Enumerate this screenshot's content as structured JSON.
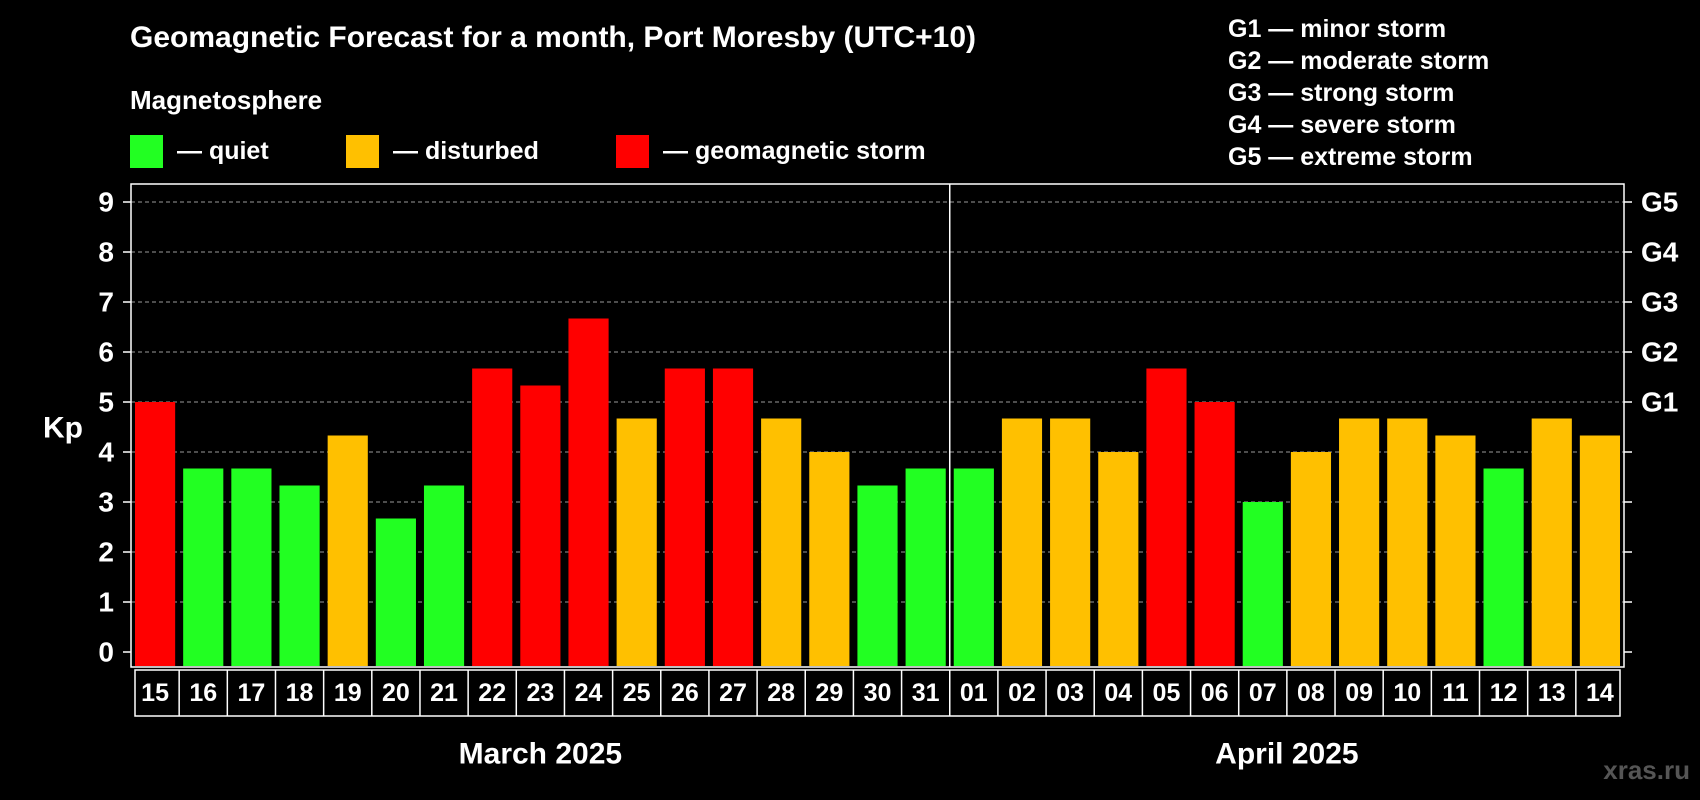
{
  "chart_data": {
    "type": "bar",
    "title": "Geomagnetic Forecast for a month, Port Moresby (UTC+10)",
    "subtitle": "Magnetosphere",
    "ylabel": "Kp",
    "ylim": [
      0,
      9
    ],
    "yticks": [
      "0",
      "1",
      "2",
      "3",
      "4",
      "5",
      "6",
      "7",
      "8",
      "9"
    ],
    "right_ticks": [
      {
        "kp": 5,
        "label": "G1"
      },
      {
        "kp": 6,
        "label": "G2"
      },
      {
        "kp": 7,
        "label": "G3"
      },
      {
        "kp": 8,
        "label": "G4"
      },
      {
        "kp": 9,
        "label": "G5"
      }
    ],
    "grid": true,
    "categories": [
      "15",
      "16",
      "17",
      "18",
      "19",
      "20",
      "21",
      "22",
      "23",
      "24",
      "25",
      "26",
      "27",
      "28",
      "29",
      "30",
      "31",
      "01",
      "02",
      "03",
      "04",
      "05",
      "06",
      "07",
      "08",
      "09",
      "10",
      "11",
      "12",
      "13",
      "14"
    ],
    "values": [
      5.0,
      3.67,
      3.67,
      3.33,
      4.33,
      2.67,
      3.33,
      5.67,
      5.33,
      6.67,
      4.67,
      5.67,
      5.67,
      4.67,
      4.0,
      3.33,
      3.67,
      3.67,
      4.67,
      4.67,
      4.0,
      5.67,
      5.0,
      3.0,
      4.0,
      4.67,
      4.67,
      4.33,
      3.67,
      4.67,
      4.33
    ],
    "status": [
      "storm",
      "quiet",
      "quiet",
      "quiet",
      "disturbed",
      "quiet",
      "quiet",
      "storm",
      "storm",
      "storm",
      "disturbed",
      "storm",
      "storm",
      "disturbed",
      "disturbed",
      "quiet",
      "quiet",
      "quiet",
      "disturbed",
      "disturbed",
      "disturbed",
      "storm",
      "storm",
      "quiet",
      "disturbed",
      "disturbed",
      "disturbed",
      "disturbed",
      "quiet",
      "disturbed",
      "disturbed"
    ],
    "months": [
      {
        "label": "March 2025",
        "start": 0,
        "end": 16
      },
      {
        "label": "April 2025",
        "start": 17,
        "end": 30
      }
    ],
    "legend": [
      {
        "key": "quiet",
        "label": "— quiet",
        "color": "#22ff22"
      },
      {
        "key": "disturbed",
        "label": "— disturbed",
        "color": "#ffc000"
      },
      {
        "key": "storm",
        "label": "— geomagnetic storm",
        "color": "#ff0000"
      }
    ],
    "g_scale": [
      "G1 — minor storm",
      "G2 — moderate storm",
      "G3 — strong storm",
      "G4 — severe storm",
      "G5 — extreme storm"
    ]
  },
  "watermark": "xras.ru"
}
